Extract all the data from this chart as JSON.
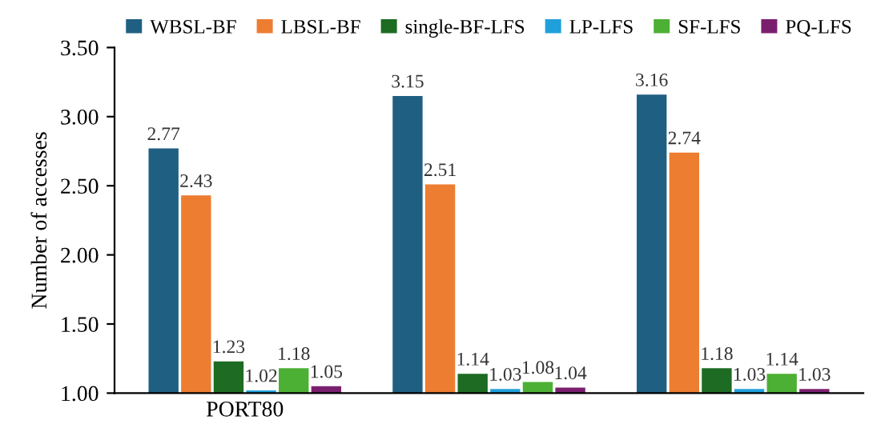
{
  "chart_data": {
    "type": "bar",
    "ylabel": "Number of accesses",
    "categories": [
      "PORT80",
      null,
      null
    ],
    "series": [
      {
        "name": "WBSL-BF",
        "color": "#1f5f82",
        "values": [
          2.77,
          3.15,
          3.16
        ]
      },
      {
        "name": "LBSL-BF",
        "color": "#ed7d31",
        "values": [
          2.43,
          2.51,
          2.74
        ]
      },
      {
        "name": "single-BF-LFS",
        "color": "#1e6b24",
        "values": [
          1.23,
          1.14,
          1.18
        ]
      },
      {
        "name": "LP-LFS",
        "color": "#1fa0db",
        "values": [
          1.02,
          1.03,
          1.03
        ]
      },
      {
        "name": "SF-LFS",
        "color": "#4cb034",
        "values": [
          1.18,
          1.08,
          1.14
        ]
      },
      {
        "name": "PQ-LFS",
        "color": "#7a1f6e",
        "values": [
          1.05,
          1.04,
          1.03
        ]
      }
    ],
    "ylim": [
      1.0,
      3.5
    ],
    "yticks": [
      {
        "value": 1.0,
        "label": "1.00"
      },
      {
        "value": 1.5,
        "label": "1.50"
      },
      {
        "value": 2.0,
        "label": "2.00"
      },
      {
        "value": 2.5,
        "label": "2.50"
      },
      {
        "value": 3.0,
        "label": "3.00"
      },
      {
        "value": 3.5,
        "label": "3.50"
      }
    ],
    "data_labels": true,
    "legend": "top",
    "grid": false
  }
}
